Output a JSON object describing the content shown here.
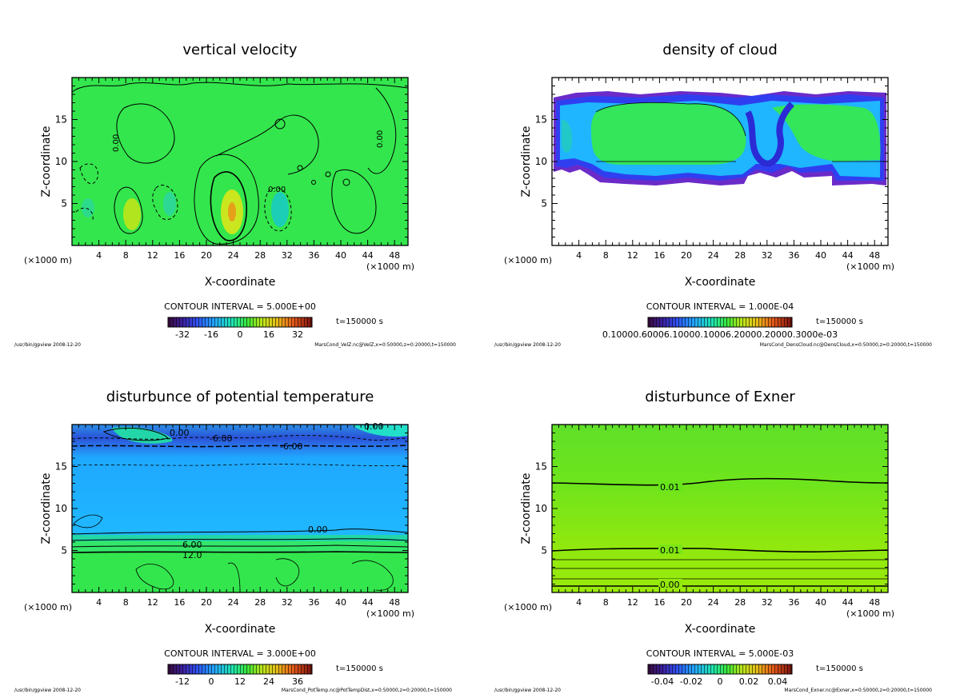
{
  "colors": {
    "background": "#ffffff",
    "axis": "#000000",
    "green_base": "#33e64d",
    "cyan_base": "#1ab3ff",
    "blue_deep": "#2b2bd6",
    "exner_green": "#66e61a"
  },
  "chart_data": [
    {
      "type": "heatmap",
      "id": "velz",
      "title": "vertical velocity",
      "xlabel": "X-coordinate",
      "ylabel": "Z-coordinate",
      "xunit_left": "(×1000 m)",
      "xunit_right": "(×1000 m)",
      "xlim": [
        0,
        50
      ],
      "ylim": [
        0,
        20
      ],
      "xticks": [
        4,
        8,
        12,
        16,
        20,
        24,
        28,
        32,
        36,
        40,
        44,
        48
      ],
      "xtick_labels": [
        "4",
        "8",
        "12",
        "16",
        "20",
        "24",
        "28",
        "32",
        "36",
        "40",
        "44",
        "48"
      ],
      "yticks": [
        5,
        10,
        15
      ],
      "ytick_labels": [
        "5",
        "10",
        "15"
      ],
      "contour_interval": "CONTOUR INTERVAL = 5.000E+00",
      "time_label": "t=150000 s",
      "colorbar_range": [
        -40,
        40
      ],
      "colorbar_ticks": [
        -32,
        -16,
        0,
        16,
        32
      ],
      "colorbar_tick_labels": [
        "-32",
        "-16",
        "0",
        "16",
        "32"
      ],
      "contour_labels": [
        "0.00",
        "0.00",
        "0.00",
        "0.00"
      ],
      "footer_left": "/usr/bin/gpview  2008-12-20",
      "footer_right": "MarsCond_VelZ.nc@VelZ,x=0:50000,z=0:20000,t=150000"
    },
    {
      "type": "heatmap",
      "id": "denscloud",
      "title": "density of cloud",
      "xlabel": "X-coordinate",
      "ylabel": "Z-coordinate",
      "xunit_left": "(×1000 m)",
      "xunit_right": "(×1000 m)",
      "xlim": [
        0,
        50
      ],
      "ylim": [
        0,
        20
      ],
      "xticks": [
        4,
        8,
        12,
        16,
        20,
        24,
        28,
        32,
        36,
        40,
        44,
        48
      ],
      "xtick_labels": [
        "4",
        "8",
        "12",
        "16",
        "20",
        "24",
        "28",
        "32",
        "36",
        "40",
        "44",
        "48"
      ],
      "yticks": [
        5,
        10,
        15
      ],
      "ytick_labels": [
        "5",
        "10",
        "15"
      ],
      "contour_interval": "CONTOUR INTERVAL = 1.000E-04",
      "time_label": "t=150000 s",
      "colorbar_range": [
        0,
        1
      ],
      "colorbar_label_overlap": "0.10000.60006.10000.10006.20000.20000.3000e-03",
      "contour_labels": [],
      "footer_left": "/usr/bin/gpview  2008-12-20",
      "footer_right": "MarsCond_DensCloud.nc@DensCloud,x=0:50000,z=0:20000,t=150000"
    },
    {
      "type": "heatmap",
      "id": "pottemp",
      "title": "disturbunce of potential temperature",
      "xlabel": "X-coordinate",
      "ylabel": "Z-coordinate",
      "xunit_left": "(×1000 m)",
      "xunit_right": "(×1000 m)",
      "xlim": [
        0,
        50
      ],
      "ylim": [
        0,
        20
      ],
      "xticks": [
        4,
        8,
        12,
        16,
        20,
        24,
        28,
        32,
        36,
        40,
        44,
        48
      ],
      "xtick_labels": [
        "4",
        "8",
        "12",
        "16",
        "20",
        "24",
        "28",
        "32",
        "36",
        "40",
        "44",
        "48"
      ],
      "yticks": [
        5,
        10,
        15
      ],
      "ytick_labels": [
        "5",
        "10",
        "15"
      ],
      "contour_interval": "CONTOUR INTERVAL = 3.000E+00",
      "time_label": "t=150000 s",
      "colorbar_range": [
        -18,
        42
      ],
      "colorbar_ticks": [
        -12,
        0,
        12,
        24,
        36
      ],
      "colorbar_tick_labels": [
        "-12",
        "0",
        "12",
        "24",
        "36"
      ],
      "contour_labels": [
        "0.00",
        "0.00",
        "-6.00",
        "-6.00",
        "0.00",
        "6.00",
        "12.0"
      ],
      "footer_left": "/usr/bin/gpview  2008-12-20",
      "footer_right": "MarsCond_PotTemp.nc@PotTempDist,x=0:50000,z=0:20000,t=150000"
    },
    {
      "type": "heatmap",
      "id": "exner",
      "title": "disturbunce of Exner",
      "xlabel": "X-coordinate",
      "ylabel": "Z-coordinate",
      "xunit_left": "(×1000 m)",
      "xunit_right": "(×1000 m)",
      "xlim": [
        0,
        50
      ],
      "ylim": [
        0,
        20
      ],
      "xticks": [
        4,
        8,
        12,
        16,
        20,
        24,
        28,
        32,
        36,
        40,
        44,
        48
      ],
      "xtick_labels": [
        "4",
        "8",
        "12",
        "16",
        "20",
        "24",
        "28",
        "32",
        "36",
        "40",
        "44",
        "48"
      ],
      "yticks": [
        5,
        10,
        15
      ],
      "ytick_labels": [
        "5",
        "10",
        "15"
      ],
      "contour_interval": "CONTOUR INTERVAL = 5.000E-03",
      "time_label": "t=150000 s",
      "colorbar_range": [
        -0.05,
        0.05
      ],
      "colorbar_ticks": [
        -0.04,
        -0.02,
        0,
        0.02,
        0.04
      ],
      "colorbar_tick_labels": [
        "-0.04",
        "-0.02",
        "0",
        "0.02",
        "0.04"
      ],
      "contour_labels": [
        "0.01",
        "0.01",
        "0.00"
      ],
      "footer_left": "/usr/bin/gpview  2008-12-20",
      "footer_right": "MarsCond_Exner.nc@Exner,x=0:50000,z=0:20000,t=150000"
    }
  ]
}
